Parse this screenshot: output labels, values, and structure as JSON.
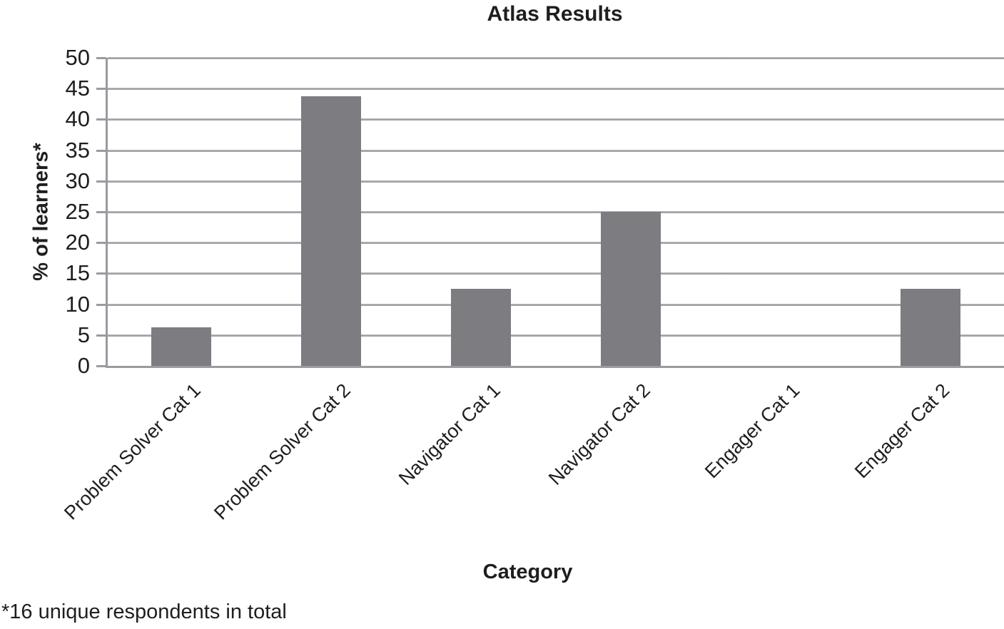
{
  "chart_data": {
    "type": "bar",
    "title": "Atlas Results",
    "xlabel": "Category",
    "ylabel": "% of learners*",
    "footnote": "*16 unique respondents in total",
    "categories": [
      "Problem Solver Cat 1",
      "Problem Solver Cat 2",
      "Navigator Cat 1",
      "Navigator Cat 2",
      "Engager Cat 1",
      "Engager Cat 2"
    ],
    "values": [
      6.25,
      43.75,
      12.5,
      25,
      0,
      12.5
    ],
    "ylim": [
      0,
      50
    ],
    "ytick_step": 5,
    "ytick_labels": [
      "0",
      "5",
      "10",
      "15",
      "20",
      "25",
      "30",
      "35",
      "40",
      "45",
      "50"
    ],
    "grid": "horizontal",
    "legend": "none",
    "bar_color": "#7c7c81",
    "grid_color": "#9c9ba1",
    "axis_color": "#9b9aa0",
    "text_color": "#1e1e1e"
  }
}
